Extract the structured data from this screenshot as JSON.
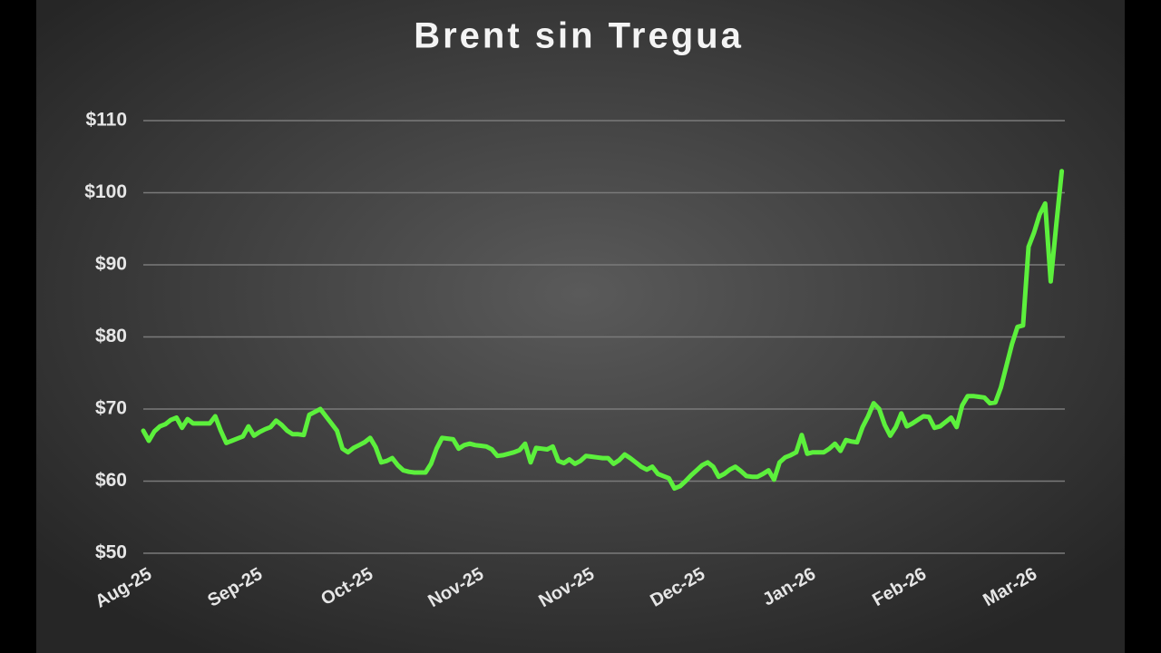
{
  "chart_data": {
    "type": "line",
    "title": "Brent sin Tregua",
    "categories": [
      "Aug-25",
      null,
      null,
      null,
      null,
      null,
      null,
      null,
      null,
      null,
      null,
      null,
      null,
      null,
      null,
      null,
      null,
      null,
      null,
      null,
      "Sep-25",
      null,
      null,
      null,
      null,
      null,
      null,
      null,
      null,
      null,
      null,
      null,
      null,
      null,
      null,
      null,
      null,
      null,
      null,
      null,
      "Oct-25",
      null,
      null,
      null,
      null,
      null,
      null,
      null,
      null,
      null,
      null,
      null,
      null,
      null,
      null,
      null,
      null,
      null,
      null,
      null,
      "Nov-25",
      null,
      null,
      null,
      null,
      null,
      null,
      null,
      null,
      null,
      null,
      null,
      null,
      null,
      null,
      null,
      null,
      null,
      null,
      null,
      "Nov-25",
      null,
      null,
      null,
      null,
      null,
      null,
      null,
      null,
      null,
      null,
      null,
      null,
      null,
      null,
      null,
      null,
      null,
      null,
      null,
      "Dec-25",
      null,
      null,
      null,
      null,
      null,
      null,
      null,
      null,
      null,
      null,
      null,
      null,
      null,
      null,
      null,
      null,
      null,
      null,
      null,
      "Jan-26",
      null,
      null,
      null,
      null,
      null,
      null,
      null,
      null,
      null,
      null,
      null,
      null,
      null,
      null,
      null,
      null,
      null,
      null,
      null,
      "Feb-26",
      null,
      null,
      null,
      null,
      null,
      null,
      null,
      null,
      null,
      null,
      null,
      null,
      null,
      null,
      null,
      null,
      null,
      null,
      null,
      "Mar-26",
      null,
      null,
      null,
      null,
      null,
      null
    ],
    "values": [
      67.0,
      65.6,
      66.9,
      67.6,
      67.9,
      68.5,
      68.8,
      67.4,
      68.6,
      68.0,
      68.0,
      68.0,
      68.0,
      69.0,
      67.0,
      65.3,
      65.6,
      65.9,
      66.2,
      67.6,
      66.3,
      66.8,
      67.2,
      67.5,
      68.4,
      67.8,
      67.0,
      66.5,
      66.5,
      66.4,
      69.2,
      69.6,
      70.0,
      69.0,
      68.0,
      67.0,
      64.5,
      64.0,
      64.6,
      65.0,
      65.4,
      66.0,
      64.7,
      62.6,
      62.8,
      63.2,
      62.2,
      61.5,
      61.3,
      61.2,
      61.2,
      61.2,
      62.4,
      64.5,
      66.0,
      65.9,
      65.8,
      64.5,
      65.0,
      65.2,
      65.0,
      64.9,
      64.8,
      64.4,
      63.5,
      63.6,
      63.8,
      64.0,
      64.3,
      65.2,
      62.6,
      64.6,
      64.5,
      64.4,
      64.8,
      62.8,
      62.5,
      63.0,
      62.4,
      62.8,
      63.5,
      63.4,
      63.3,
      63.2,
      63.2,
      62.4,
      62.9,
      63.7,
      63.2,
      62.6,
      62.0,
      61.6,
      62.0,
      61.0,
      60.7,
      60.4,
      59.0,
      59.3,
      60.0,
      60.8,
      61.5,
      62.2,
      62.6,
      62.0,
      60.6,
      61.0,
      61.6,
      62.0,
      61.4,
      60.7,
      60.6,
      60.6,
      61.0,
      61.5,
      60.2,
      62.6,
      63.3,
      63.6,
      64.0,
      66.4,
      63.8,
      64.0,
      64.0,
      64.0,
      64.5,
      65.2,
      64.2,
      65.7,
      65.5,
      65.4,
      67.5,
      69.0,
      70.8,
      70.0,
      67.8,
      66.3,
      67.5,
      69.4,
      67.6,
      68.0,
      68.5,
      69.0,
      68.9,
      67.4,
      67.6,
      68.2,
      68.8,
      67.5,
      70.5,
      71.8,
      71.8,
      71.7,
      71.6,
      70.8,
      70.9,
      73.0,
      76.0,
      79.0,
      81.4,
      81.6,
      92.5,
      94.5,
      97.0,
      98.5,
      87.7,
      95.5,
      103.0
    ],
    "color": "#5cf03c",
    "ylim": [
      50,
      110
    ],
    "yticks": [
      {
        "value": 50,
        "label": "$50"
      },
      {
        "value": 60,
        "label": "$60"
      },
      {
        "value": 70,
        "label": "$70"
      },
      {
        "value": 80,
        "label": "$80"
      },
      {
        "value": 90,
        "label": "$90"
      },
      {
        "value": 100,
        "label": "$100"
      },
      {
        "value": 110,
        "label": "$110"
      }
    ],
    "grid": true
  }
}
